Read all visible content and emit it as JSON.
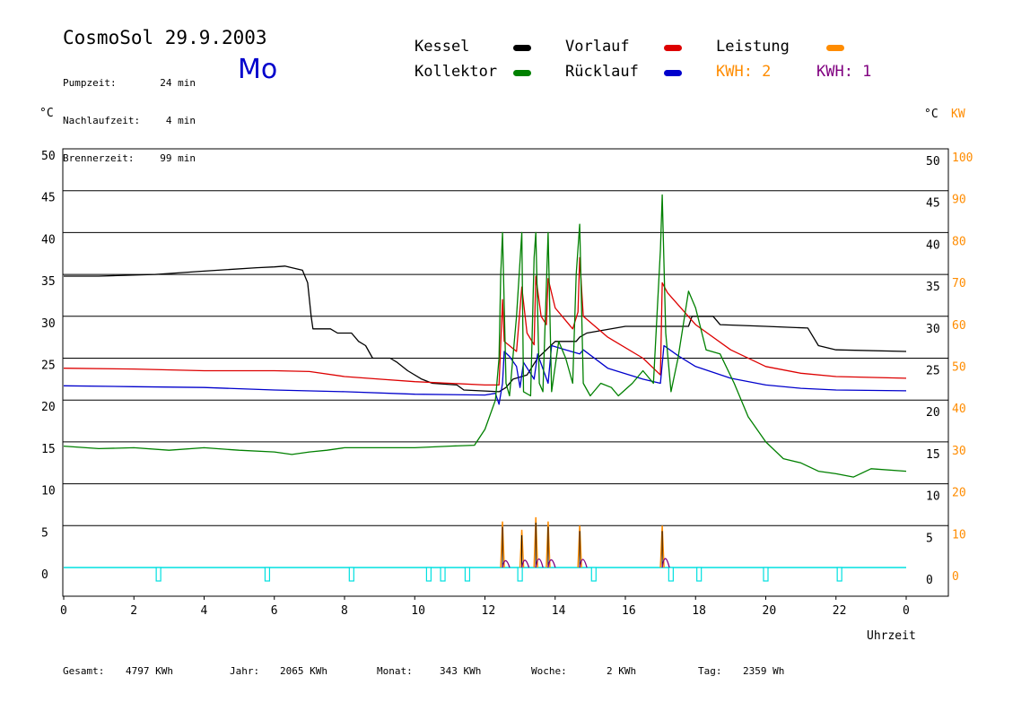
{
  "header": {
    "title": "CosmoSol 29.9.2003",
    "day": "Mo",
    "info": [
      {
        "label": "Pumpzeit:",
        "value": "24 min"
      },
      {
        "label": "Nachlaufzeit:",
        "value": "4 min"
      },
      {
        "label": "Brennerzeit:",
        "value": "99 min"
      }
    ]
  },
  "legend": {
    "kessel": "Kessel",
    "kollektor": "Kollektor",
    "vorlauf": "Vorlauf",
    "ruecklauf": "Rücklauf",
    "leistung": "Leistung",
    "kwh_a": "KWH: 2",
    "kwh_b": "KWH: 1"
  },
  "colors": {
    "kessel": "#000000",
    "kollektor": "#008000",
    "vorlauf": "#dd0000",
    "ruecklauf": "#0000cc",
    "leistung": "#ff8c00",
    "kwh_b": "#800080",
    "pump": "#00e0e0"
  },
  "axes": {
    "left_unit": "°C",
    "right_unit": "°C",
    "right_unit2": "KW",
    "xlabel": "Uhrzeit"
  },
  "footer": [
    {
      "label": "Gesamt:",
      "value": "4797 KWh"
    },
    {
      "label": "Jahr:",
      "value": "2065 KWh"
    },
    {
      "label": "Monat:",
      "value": "343 KWh"
    },
    {
      "label": "Woche:",
      "value": "2 KWh"
    },
    {
      "label": "Tag:",
      "value": "2359 Wh"
    }
  ],
  "chart_data": {
    "type": "line",
    "xlim": [
      0,
      24
    ],
    "ylim": [
      0,
      50
    ],
    "y2lim": [
      0,
      100
    ],
    "y_ticks": [
      0,
      5,
      10,
      15,
      20,
      25,
      30,
      35,
      40,
      45,
      50
    ],
    "y2_ticks": [
      0,
      10,
      20,
      30,
      40,
      50,
      60,
      70,
      80,
      90,
      100
    ],
    "x_ticks": [
      "0",
      "2",
      "4",
      "6",
      "8",
      "10",
      "12",
      "14",
      "16",
      "18",
      "20",
      "22",
      "0"
    ],
    "grid": true,
    "series": [
      {
        "key": "kessel",
        "points": [
          [
            0,
            34.8
          ],
          [
            1,
            34.8
          ],
          [
            2.6,
            35
          ],
          [
            4,
            35.4
          ],
          [
            5.5,
            35.8
          ],
          [
            6,
            35.9
          ],
          [
            6.3,
            36
          ],
          [
            6.5,
            35.8
          ],
          [
            6.8,
            35.5
          ],
          [
            6.95,
            34
          ],
          [
            7.05,
            30
          ],
          [
            7.1,
            28.5
          ],
          [
            7.6,
            28.5
          ],
          [
            7.8,
            28
          ],
          [
            8.2,
            28
          ],
          [
            8.4,
            27
          ],
          [
            8.6,
            26.5
          ],
          [
            8.8,
            25
          ],
          [
            9.3,
            25
          ],
          [
            9.5,
            24.5
          ],
          [
            9.8,
            23.5
          ],
          [
            10.2,
            22.5
          ],
          [
            10.5,
            22
          ],
          [
            11.2,
            21.8
          ],
          [
            11.4,
            21.2
          ],
          [
            12.4,
            21
          ],
          [
            12.6,
            21.5
          ],
          [
            12.8,
            22.5
          ],
          [
            13.2,
            23
          ],
          [
            13.5,
            25
          ],
          [
            14,
            27
          ],
          [
            14.4,
            27
          ],
          [
            14.6,
            27
          ],
          [
            14.7,
            27.5
          ],
          [
            14.9,
            28
          ],
          [
            16,
            28.8
          ],
          [
            17.8,
            28.8
          ],
          [
            17.9,
            30
          ],
          [
            18.5,
            30
          ],
          [
            18.7,
            29
          ],
          [
            20,
            28.8
          ],
          [
            21.2,
            28.6
          ],
          [
            21.5,
            26.5
          ],
          [
            22,
            26
          ],
          [
            24,
            25.8
          ]
        ]
      },
      {
        "key": "vorlauf",
        "points": [
          [
            0,
            23.8
          ],
          [
            2,
            23.7
          ],
          [
            4,
            23.5
          ],
          [
            6,
            23.5
          ],
          [
            7,
            23.4
          ],
          [
            8,
            22.8
          ],
          [
            9,
            22.5
          ],
          [
            10,
            22.2
          ],
          [
            11,
            22
          ],
          [
            12,
            21.8
          ],
          [
            12.4,
            21.8
          ],
          [
            12.5,
            32
          ],
          [
            12.55,
            27
          ],
          [
            12.9,
            25.8
          ],
          [
            13.05,
            33.5
          ],
          [
            13.2,
            28
          ],
          [
            13.4,
            26.6
          ],
          [
            13.45,
            34.8
          ],
          [
            13.6,
            30
          ],
          [
            13.75,
            29
          ],
          [
            13.8,
            34.5
          ],
          [
            14,
            31
          ],
          [
            14.5,
            28.5
          ],
          [
            14.65,
            30.5
          ],
          [
            14.7,
            37
          ],
          [
            14.8,
            30
          ],
          [
            15.5,
            27.5
          ],
          [
            16.5,
            25
          ],
          [
            17,
            23
          ],
          [
            17.05,
            34
          ],
          [
            17.2,
            32.8
          ],
          [
            18,
            29
          ],
          [
            19,
            26
          ],
          [
            20,
            24
          ],
          [
            21,
            23.2
          ],
          [
            22,
            22.8
          ],
          [
            24,
            22.6
          ]
        ]
      },
      {
        "key": "ruecklauf",
        "points": [
          [
            0,
            21.7
          ],
          [
            2,
            21.6
          ],
          [
            4,
            21.5
          ],
          [
            6,
            21.2
          ],
          [
            8,
            21
          ],
          [
            10,
            20.7
          ],
          [
            12,
            20.6
          ],
          [
            12.3,
            20.8
          ],
          [
            12.4,
            19.5
          ],
          [
            12.5,
            22
          ],
          [
            12.55,
            25.8
          ],
          [
            12.7,
            25.2
          ],
          [
            12.9,
            24
          ],
          [
            13,
            21.5
          ],
          [
            13.1,
            24.5
          ],
          [
            13.4,
            22.5
          ],
          [
            13.5,
            25.5
          ],
          [
            13.8,
            22
          ],
          [
            13.9,
            26.5
          ],
          [
            14.3,
            26
          ],
          [
            14.7,
            25.5
          ],
          [
            14.8,
            26
          ],
          [
            15.5,
            23.8
          ],
          [
            16.5,
            22.5
          ],
          [
            17,
            22
          ],
          [
            17.1,
            26.5
          ],
          [
            17.5,
            25.3
          ],
          [
            18,
            24
          ],
          [
            19,
            22.6
          ],
          [
            20,
            21.8
          ],
          [
            21,
            21.4
          ],
          [
            22,
            21.2
          ],
          [
            24,
            21.1
          ]
        ]
      },
      {
        "key": "kollektor",
        "points": [
          [
            0,
            14.5
          ],
          [
            1,
            14.2
          ],
          [
            2,
            14.3
          ],
          [
            3,
            14
          ],
          [
            4,
            14.3
          ],
          [
            5,
            14
          ],
          [
            6,
            13.8
          ],
          [
            6.5,
            13.5
          ],
          [
            7,
            13.8
          ],
          [
            7.5,
            14
          ],
          [
            8,
            14.3
          ],
          [
            9,
            14.3
          ],
          [
            10,
            14.3
          ],
          [
            11,
            14.5
          ],
          [
            11.7,
            14.6
          ],
          [
            12,
            16.5
          ],
          [
            12.3,
            20
          ],
          [
            12.4,
            25
          ],
          [
            12.45,
            35
          ],
          [
            12.5,
            40
          ],
          [
            12.6,
            22
          ],
          [
            12.7,
            20.5
          ],
          [
            12.9,
            30
          ],
          [
            13.05,
            40
          ],
          [
            13.1,
            21
          ],
          [
            13.3,
            20.5
          ],
          [
            13.4,
            37
          ],
          [
            13.45,
            40
          ],
          [
            13.55,
            22
          ],
          [
            13.65,
            21
          ],
          [
            13.8,
            40
          ],
          [
            13.9,
            21
          ],
          [
            14.1,
            27
          ],
          [
            14.3,
            25
          ],
          [
            14.5,
            22
          ],
          [
            14.6,
            35
          ],
          [
            14.7,
            41
          ],
          [
            14.8,
            22
          ],
          [
            15,
            20.5
          ],
          [
            15.3,
            22
          ],
          [
            15.6,
            21.5
          ],
          [
            15.8,
            20.5
          ],
          [
            16.2,
            22
          ],
          [
            16.5,
            23.5
          ],
          [
            16.8,
            22
          ],
          [
            17,
            38
          ],
          [
            17.05,
            44.5
          ],
          [
            17.15,
            28
          ],
          [
            17.3,
            21
          ],
          [
            17.5,
            25
          ],
          [
            17.8,
            33
          ],
          [
            18,
            31
          ],
          [
            18.3,
            26
          ],
          [
            18.7,
            25.5
          ],
          [
            19.1,
            22
          ],
          [
            19.5,
            18
          ],
          [
            20,
            15
          ],
          [
            20.5,
            13
          ],
          [
            21,
            12.5
          ],
          [
            21.5,
            11.5
          ],
          [
            22,
            11.2
          ],
          [
            22.5,
            10.8
          ],
          [
            23,
            11.8
          ],
          [
            24,
            11.5
          ]
        ]
      }
    ],
    "leistung_peaks": [
      {
        "x": 12.5,
        "value": 11
      },
      {
        "x": 13.05,
        "value": 9
      },
      {
        "x": 13.45,
        "value": 12
      },
      {
        "x": 13.8,
        "value": 11
      },
      {
        "x": 14.7,
        "value": 10
      },
      {
        "x": 17.05,
        "value": 10
      }
    ],
    "kwh1_bumps": [
      {
        "x": 12.55,
        "value": 1.2
      },
      {
        "x": 13.1,
        "value": 1.3
      },
      {
        "x": 13.5,
        "value": 1.6
      },
      {
        "x": 13.85,
        "value": 1.4
      },
      {
        "x": 14.75,
        "value": 1.5
      },
      {
        "x": 17.1,
        "value": 1.7
      }
    ],
    "pump_markers": [
      2.7,
      5.8,
      8.2,
      10.4,
      10.8,
      11.5,
      13,
      15.1,
      17.3,
      18.1,
      20,
      22.1
    ]
  }
}
